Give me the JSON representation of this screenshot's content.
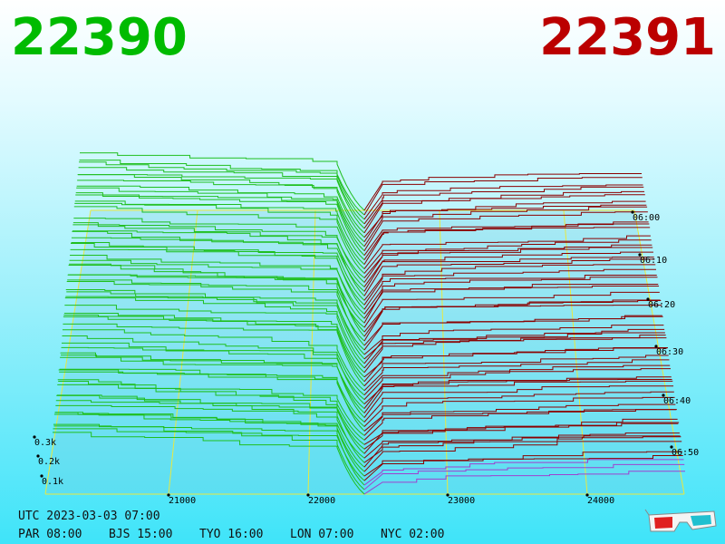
{
  "header": {
    "bid": "22390",
    "ask": "22391"
  },
  "depth_axis": {
    "ticks": [
      "0.1k",
      "0.2k",
      "0.3k"
    ]
  },
  "price_axis": {
    "ticks": [
      "21000",
      "22000",
      "23000",
      "24000"
    ]
  },
  "time_axis": {
    "ticks": [
      "06:00",
      "06:10",
      "06:20",
      "06:30",
      "06:40",
      "06:50"
    ]
  },
  "footer": {
    "utc": "UTC 2023-03-03 07:00",
    "clocks": [
      "PAR 08:00",
      "BJS 15:00",
      "TYO 16:00",
      "LON 07:00",
      "NYC 02:00"
    ]
  }
}
